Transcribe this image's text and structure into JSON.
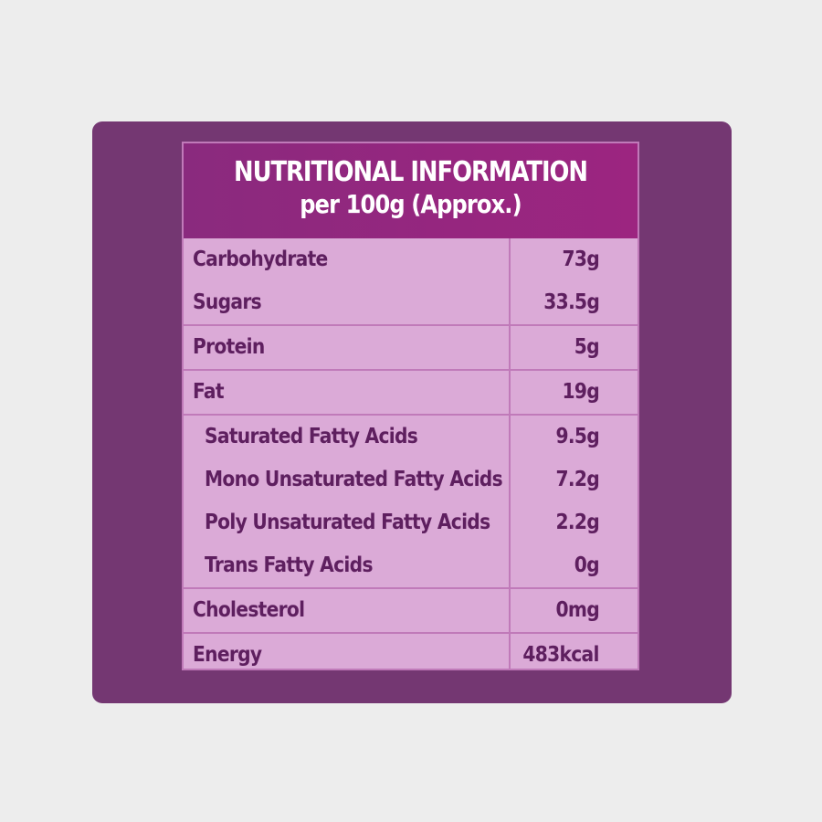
{
  "header": {
    "title": "NUTRITIONAL INFORMATION",
    "subtitle": "per 100g (Approx.)"
  },
  "groups": [
    {
      "rows": [
        {
          "label": "Carbohydrate",
          "value": "73g"
        },
        {
          "label": "Sugars",
          "value": "33.5g"
        }
      ]
    },
    {
      "rows": [
        {
          "label": "Protein",
          "value": "5g"
        }
      ]
    },
    {
      "rows": [
        {
          "label": "Fat",
          "value": "19g"
        }
      ]
    },
    {
      "rows": [
        {
          "label": "Saturated Fatty Acids",
          "value": "9.5g"
        },
        {
          "label": "Mono Unsaturated Fatty Acids",
          "value": "7.2g"
        },
        {
          "label": "Poly Unsaturated Fatty Acids",
          "value": "2.2g"
        },
        {
          "label": "Trans Fatty Acids",
          "value": "0g"
        }
      ]
    },
    {
      "rows": [
        {
          "label": "Cholesterol",
          "value": "0mg"
        }
      ]
    },
    {
      "rows": [
        {
          "label": "Energy",
          "value": "483kcal"
        }
      ]
    }
  ],
  "colors": {
    "background": "#ededed",
    "panel": "#743772",
    "table_fill": "#dbaad7",
    "header_fill": "#96267f",
    "text": "#5e1f5f",
    "lines": "#c07ab9"
  }
}
